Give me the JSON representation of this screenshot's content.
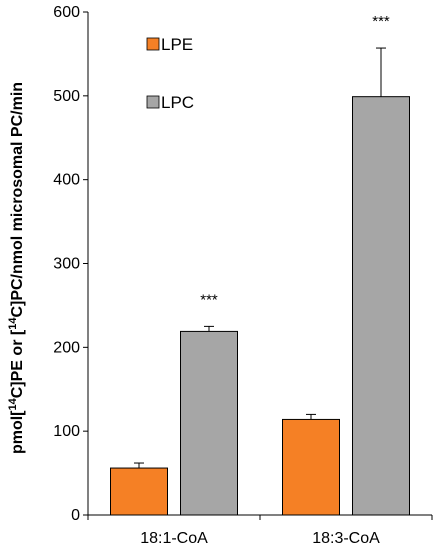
{
  "chart_data": {
    "type": "bar",
    "title": "",
    "xlabel": "",
    "ylabel": {
      "p1": "pmol[",
      "sup1": "14",
      "p2": "C]PE or [",
      "sup2": "14",
      "p3": "C]PC/nmol microsomal PC/min"
    },
    "ylim": [
      0,
      600
    ],
    "yticks": [
      0,
      100,
      200,
      300,
      400,
      500,
      600
    ],
    "categories": [
      "18:1-CoA",
      "18:3-CoA"
    ],
    "series": [
      {
        "name": "LPE",
        "color": "#f58025",
        "values": [
          56,
          114
        ],
        "errors": [
          6,
          6
        ]
      },
      {
        "name": "LPC",
        "color": "#a6a6a6",
        "values": [
          219,
          499
        ],
        "errors": [
          6,
          58
        ],
        "annotations": [
          "***",
          "***"
        ]
      }
    ],
    "legend": {
      "placement": "top-left"
    },
    "grid": false
  }
}
